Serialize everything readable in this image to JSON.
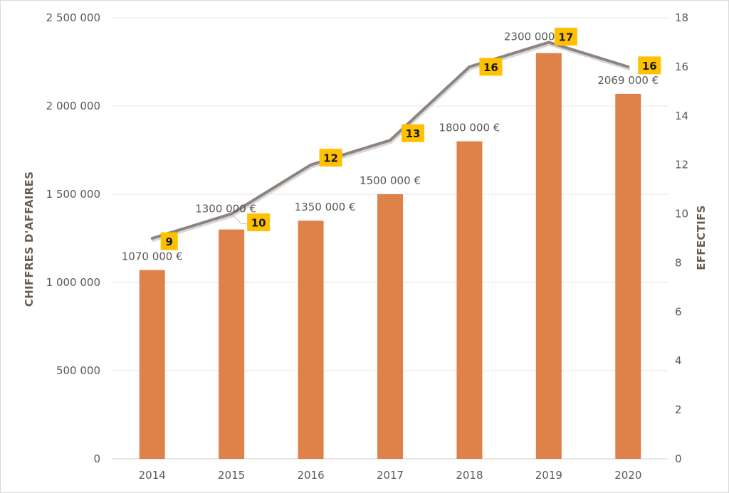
{
  "chart_data": {
    "type": "bar+line",
    "categories": [
      "2014",
      "2015",
      "2016",
      "2017",
      "2018",
      "2019",
      "2020"
    ],
    "series": [
      {
        "type": "bar",
        "axis": "left",
        "values": [
          1070000,
          1300000,
          1350000,
          1500000,
          1800000,
          2300000,
          2069000
        ],
        "labels": [
          "1070 000 €",
          "1300 000 €",
          "1350 000 €",
          "1500 000 €",
          "1800 000 €",
          "2300 000 €",
          "2069 000 €"
        ],
        "color": "#de8249"
      },
      {
        "type": "line",
        "axis": "right",
        "values": [
          9,
          10,
          12,
          13,
          16,
          17,
          16
        ],
        "labels": [
          "9",
          "10",
          "12",
          "13",
          "16",
          "17",
          "16"
        ],
        "color": "#8c8481",
        "label_bg": "#ffc000"
      }
    ],
    "ylabel": "CHIFFRES D'AFFAIRES",
    "y2label": "EFFECTIFS",
    "ylim": [
      0,
      2500000
    ],
    "y2lim": [
      0,
      18
    ],
    "yticks": [
      "0",
      "500 000",
      "1 000 000",
      "1 500 000",
      "2 000 000",
      "2 500 000"
    ],
    "y2ticks": [
      "0",
      "2",
      "4",
      "6",
      "8",
      "10",
      "12",
      "14",
      "16",
      "18"
    ],
    "grid": true,
    "legend": "none",
    "gridline_color": "#e6e6e6",
    "axis_title_color": "#6b5b4e",
    "tick_color": "#595959"
  }
}
